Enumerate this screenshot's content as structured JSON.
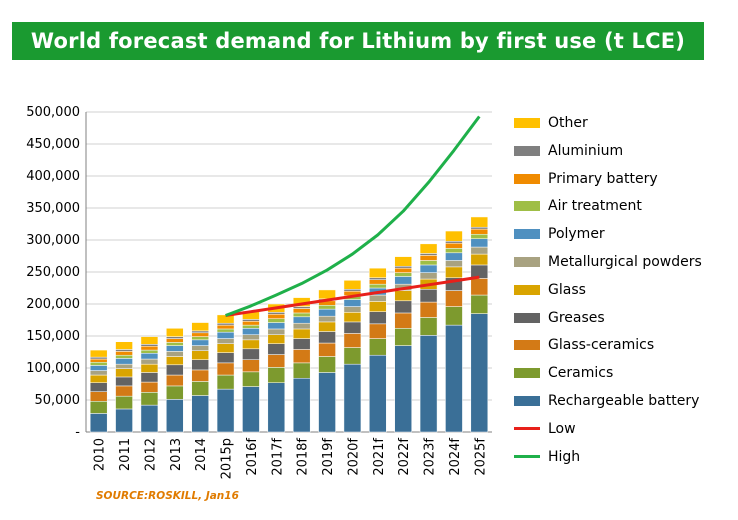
{
  "header": {
    "title": "World forecast demand for Lithium by first use (t LCE)"
  },
  "source": "SOURCE:ROSKILL, Jan16",
  "colors": {
    "title_bg": "#1a9a30",
    "source_text": "#e07b00"
  },
  "chart_data": {
    "type": "bar",
    "stacked": true,
    "title": "World forecast demand for Lithium by first use (t LCE)",
    "xlabel": "",
    "ylabel": "",
    "ylim": [
      0,
      500000
    ],
    "yticks": [
      "-",
      "50,000",
      "100,000",
      "150,000",
      "200,000",
      "250,000",
      "300,000",
      "350,000",
      "400,000",
      "450,000",
      "500,000"
    ],
    "categories": [
      "2010",
      "2011",
      "2012",
      "2013",
      "2014",
      "2015p",
      "2016f",
      "2017f",
      "2018f",
      "2019f",
      "2020f",
      "2021f",
      "2022f",
      "2023f",
      "2024f",
      "2025f"
    ],
    "grid": true,
    "legend_position": "right",
    "series": [
      {
        "name": "Rechargeable battery",
        "color": "#3a6f97",
        "values": [
          29000,
          36000,
          42000,
          51000,
          57000,
          67000,
          71000,
          77000,
          84000,
          93000,
          106000,
          120000,
          135000,
          151000,
          167000,
          185000
        ]
      },
      {
        "name": "Ceramics",
        "color": "#7d9a2e",
        "values": [
          19000,
          20000,
          20000,
          21000,
          22000,
          22000,
          23000,
          24000,
          24000,
          25000,
          26000,
          26000,
          27000,
          28000,
          29000,
          29000
        ]
      },
      {
        "name": "Glass-ceramics",
        "color": "#d37a16",
        "values": [
          15000,
          16000,
          16000,
          17000,
          18000,
          19000,
          19000,
          20000,
          21000,
          21000,
          22000,
          23000,
          24000,
          24000,
          25000,
          26000
        ]
      },
      {
        "name": "Greases",
        "color": "#636363",
        "values": [
          14000,
          14000,
          15000,
          16000,
          16000,
          16000,
          17000,
          17000,
          17000,
          18000,
          18000,
          19000,
          19000,
          20000,
          20000,
          21000
        ]
      },
      {
        "name": "Glass",
        "color": "#d9a400",
        "values": [
          12000,
          13000,
          13000,
          13000,
          14000,
          14000,
          14000,
          14000,
          15000,
          15000,
          15000,
          16000,
          16000,
          16000,
          17000,
          17000
        ]
      },
      {
        "name": "Metallurgical powders",
        "color": "#a8a281",
        "values": [
          7000,
          7000,
          8000,
          8000,
          8000,
          8000,
          8000,
          9000,
          9000,
          9000,
          9000,
          10000,
          10000,
          10000,
          10000,
          11000
        ]
      },
      {
        "name": "Polymer",
        "color": "#4f90c0",
        "values": [
          8000,
          9000,
          9000,
          9000,
          9000,
          10000,
          10000,
          10000,
          10000,
          11000,
          11000,
          11000,
          12000,
          12000,
          12000,
          13000
        ]
      },
      {
        "name": "Air treatment",
        "color": "#9fbe46",
        "values": [
          5000,
          5000,
          5000,
          5000,
          5000,
          5000,
          5000,
          6000,
          6000,
          6000,
          6000,
          6000,
          6000,
          7000,
          7000,
          7000
        ]
      },
      {
        "name": "Primary battery",
        "color": "#f08b00",
        "values": [
          5000,
          6000,
          6000,
          6000,
          6000,
          6000,
          6000,
          7000,
          7000,
          7000,
          7000,
          7000,
          7000,
          8000,
          8000,
          8000
        ]
      },
      {
        "name": "Aluminium",
        "color": "#7f7f7f",
        "values": [
          3000,
          3000,
          3000,
          3000,
          3000,
          3000,
          3000,
          3000,
          3000,
          3000,
          3000,
          3000,
          3000,
          3000,
          3000,
          3000
        ]
      },
      {
        "name": "Other",
        "color": "#ffc000",
        "values": [
          11000,
          12000,
          12000,
          13000,
          13000,
          13000,
          13000,
          13000,
          14000,
          14000,
          14000,
          15000,
          15000,
          15000,
          16000,
          16000
        ]
      }
    ],
    "lines": [
      {
        "name": "Low",
        "color": "#e8201a",
        "start_index": 5,
        "values": [
          182000,
          188000,
          194000,
          200000,
          206000,
          212000,
          218000,
          224000,
          230000,
          236000,
          242000
        ]
      },
      {
        "name": "High",
        "color": "#1fb04a",
        "start_index": 5,
        "values": [
          182000,
          197000,
          214000,
          232000,
          253000,
          278000,
          308000,
          345000,
          390000,
          440000,
          493000
        ]
      }
    ],
    "legend_order": [
      "Other",
      "Aluminium",
      "Primary battery",
      "Air treatment",
      "Polymer",
      "Metallurgical powders",
      "Glass",
      "Greases",
      "Glass-ceramics",
      "Ceramics",
      "Rechargeable battery",
      "Low",
      "High"
    ]
  }
}
